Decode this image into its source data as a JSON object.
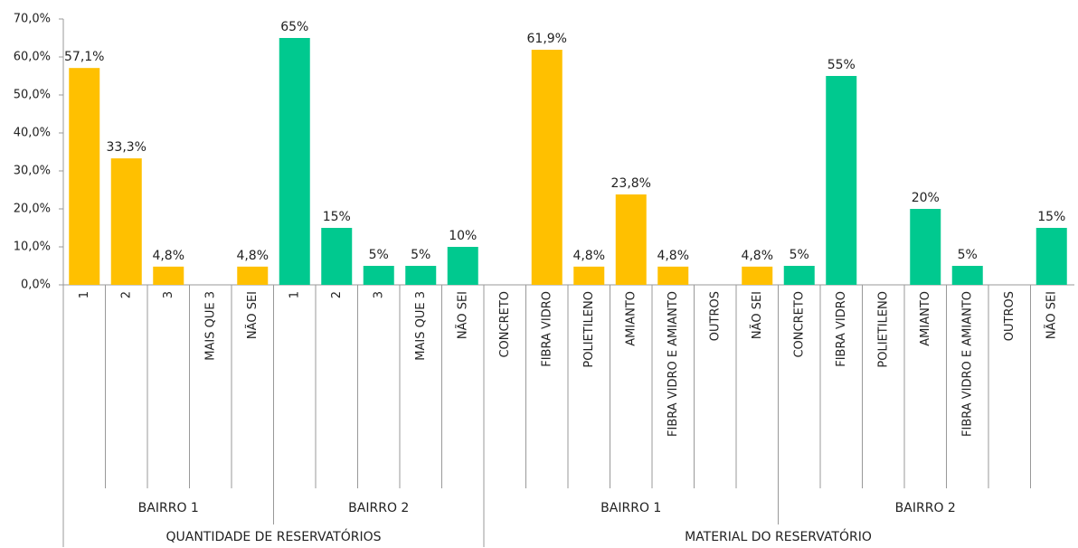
{
  "chart_data": {
    "type": "bar",
    "ylim": [
      0,
      70
    ],
    "yticks": [
      {
        "value": 0,
        "label": "0,0%"
      },
      {
        "value": 10,
        "label": "10,0%"
      },
      {
        "value": 20,
        "label": "20,0%"
      },
      {
        "value": 30,
        "label": "30,0%"
      },
      {
        "value": 40,
        "label": "40,0%"
      },
      {
        "value": 50,
        "label": "50,0%"
      },
      {
        "value": 60,
        "label": "60,0%"
      },
      {
        "value": 70,
        "label": "70,0%"
      }
    ],
    "sections": [
      {
        "label": "QUANTIDADE DE RESERVATÓRIOS",
        "groups": [
          {
            "label": "BAIRRO 1",
            "color": "#FFC000",
            "categories": [
              "1",
              "2",
              "3",
              "MAIS QUE 3",
              "NÃO SEI"
            ],
            "values": [
              57.1,
              33.3,
              4.8,
              null,
              4.8
            ],
            "value_labels": [
              "57,1%",
              "33,3%",
              "4,8%",
              null,
              "4,8%"
            ]
          },
          {
            "label": "BAIRRO 2",
            "color": "#00C98F",
            "categories": [
              "1",
              "2",
              "3",
              "MAIS QUE 3",
              "NÃO SEI"
            ],
            "values": [
              65,
              15,
              5,
              5,
              10
            ],
            "value_labels": [
              "65%",
              "15%",
              "5%",
              "5%",
              "10%"
            ]
          }
        ]
      },
      {
        "label": "MATERIAL DO RESERVATÓRIO",
        "groups": [
          {
            "label": "BAIRRO 1",
            "color": "#FFC000",
            "categories": [
              "CONCRETO",
              "FIBRA VIDRO",
              "POLIETILENO",
              "AMIANTO",
              "FIBRA VIDRO E AMIANTO",
              "OUTROS",
              "NÃO SEI"
            ],
            "values": [
              null,
              61.9,
              4.8,
              23.8,
              4.8,
              null,
              4.8
            ],
            "value_labels": [
              null,
              "61,9%",
              "4,8%",
              "23,8%",
              "4,8%",
              null,
              "4,8%"
            ]
          },
          {
            "label": "BAIRRO 2",
            "color": "#00C98F",
            "categories": [
              "CONCRETO",
              "FIBRA VIDRO",
              "POLIETILENO",
              "AMIANTO",
              "FIBRA VIDRO E AMIANTO",
              "OUTROS",
              "NÃO SEI"
            ],
            "values": [
              5,
              55,
              null,
              20,
              5,
              null,
              15
            ],
            "value_labels": [
              "5%",
              "55%",
              null,
              "20%",
              "5%",
              null,
              "15%"
            ]
          }
        ]
      }
    ]
  }
}
